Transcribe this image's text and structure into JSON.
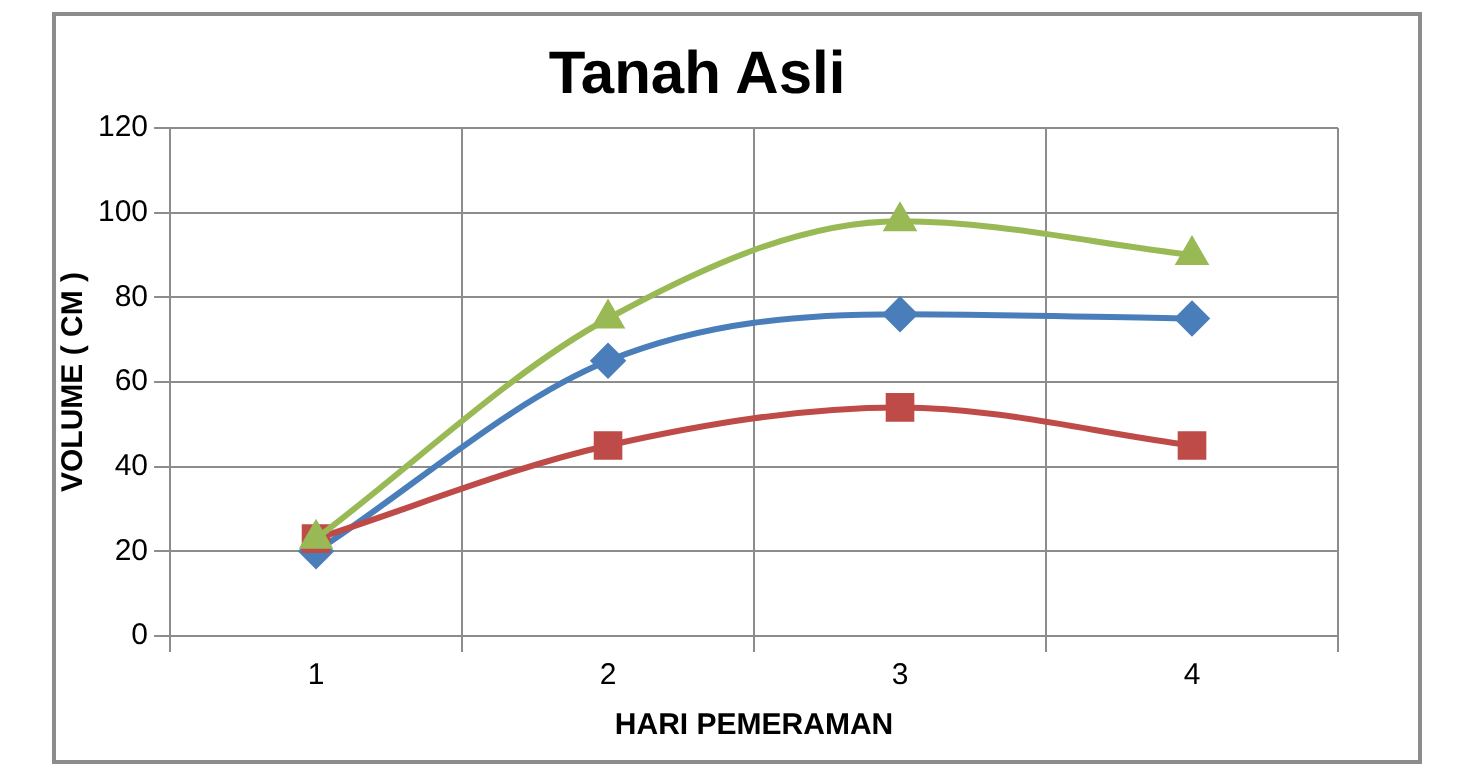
{
  "chart_data": {
    "type": "line",
    "title": "Tanah Asli",
    "xlabel": "HARI PEMERAMAN",
    "ylabel": "VOLUME ( CM )",
    "categories": [
      "1",
      "2",
      "3",
      "4"
    ],
    "series": [
      {
        "color": "#4a7ebb",
        "values": [
          20,
          65,
          76,
          75
        ],
        "marker": "diamond"
      },
      {
        "color": "#be4b48",
        "values": [
          23,
          45,
          54,
          45
        ],
        "marker": "square"
      },
      {
        "color": "#98b954",
        "values": [
          23,
          75,
          98,
          90
        ],
        "marker": "triangle"
      }
    ],
    "ylim": [
      0,
      120
    ],
    "yticks": [
      0,
      20,
      40,
      60,
      80,
      100,
      120
    ],
    "grid": true,
    "legend": false
  }
}
